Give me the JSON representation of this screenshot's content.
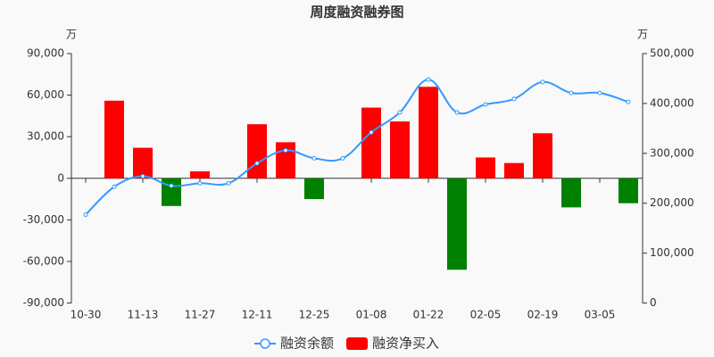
{
  "chart_data": {
    "type": "bar-line",
    "title": "周度融资融券图",
    "y_unit": "万",
    "y2_unit": "万",
    "categories": [
      "10-30",
      null,
      "11-13",
      null,
      "11-27",
      null,
      "12-11",
      null,
      "12-25",
      null,
      "01-08",
      null,
      "01-22",
      null,
      "02-05",
      null,
      "02-19",
      null,
      "03-05",
      null
    ],
    "series": [
      {
        "name": "融资净买入",
        "type": "bar",
        "color": "#ff0000",
        "negative_color": "#008000",
        "values": [
          null,
          56000,
          22000,
          -20000,
          5000,
          null,
          39000,
          26000,
          -15000,
          null,
          51000,
          41000,
          66000,
          -66000,
          15000,
          11000,
          32500,
          -21000,
          null,
          -18000
        ]
      },
      {
        "name": "融资余额",
        "type": "line",
        "axis": "y2",
        "color": "#3399ff",
        "values": [
          177000,
          233000,
          254000,
          235000,
          240000,
          240000,
          280000,
          306000,
          290000,
          290000,
          342000,
          382000,
          448000,
          382000,
          398000,
          409000,
          443000,
          421000,
          421000,
          403000
        ]
      }
    ],
    "ylim": [
      -90000,
      90000
    ],
    "yticks": [
      {
        "value": -90000,
        "label": "-90,000"
      },
      {
        "value": -60000,
        "label": "-60,000"
      },
      {
        "value": -30000,
        "label": "-30,000"
      },
      0,
      {
        "value": 30000,
        "label": "30,000"
      },
      {
        "value": 60000,
        "label": "60,000"
      },
      {
        "value": 90000,
        "label": "90,000"
      }
    ],
    "y2lim": [
      0,
      500000
    ],
    "y2ticks": [
      0,
      {
        "value": 100000,
        "label": "100,000"
      },
      {
        "value": 200000,
        "label": "200,000"
      },
      {
        "value": 300000,
        "label": "300,000"
      },
      {
        "value": 400000,
        "label": "400,000"
      },
      {
        "value": 500000,
        "label": "500,000"
      }
    ],
    "legend": "bottom"
  }
}
